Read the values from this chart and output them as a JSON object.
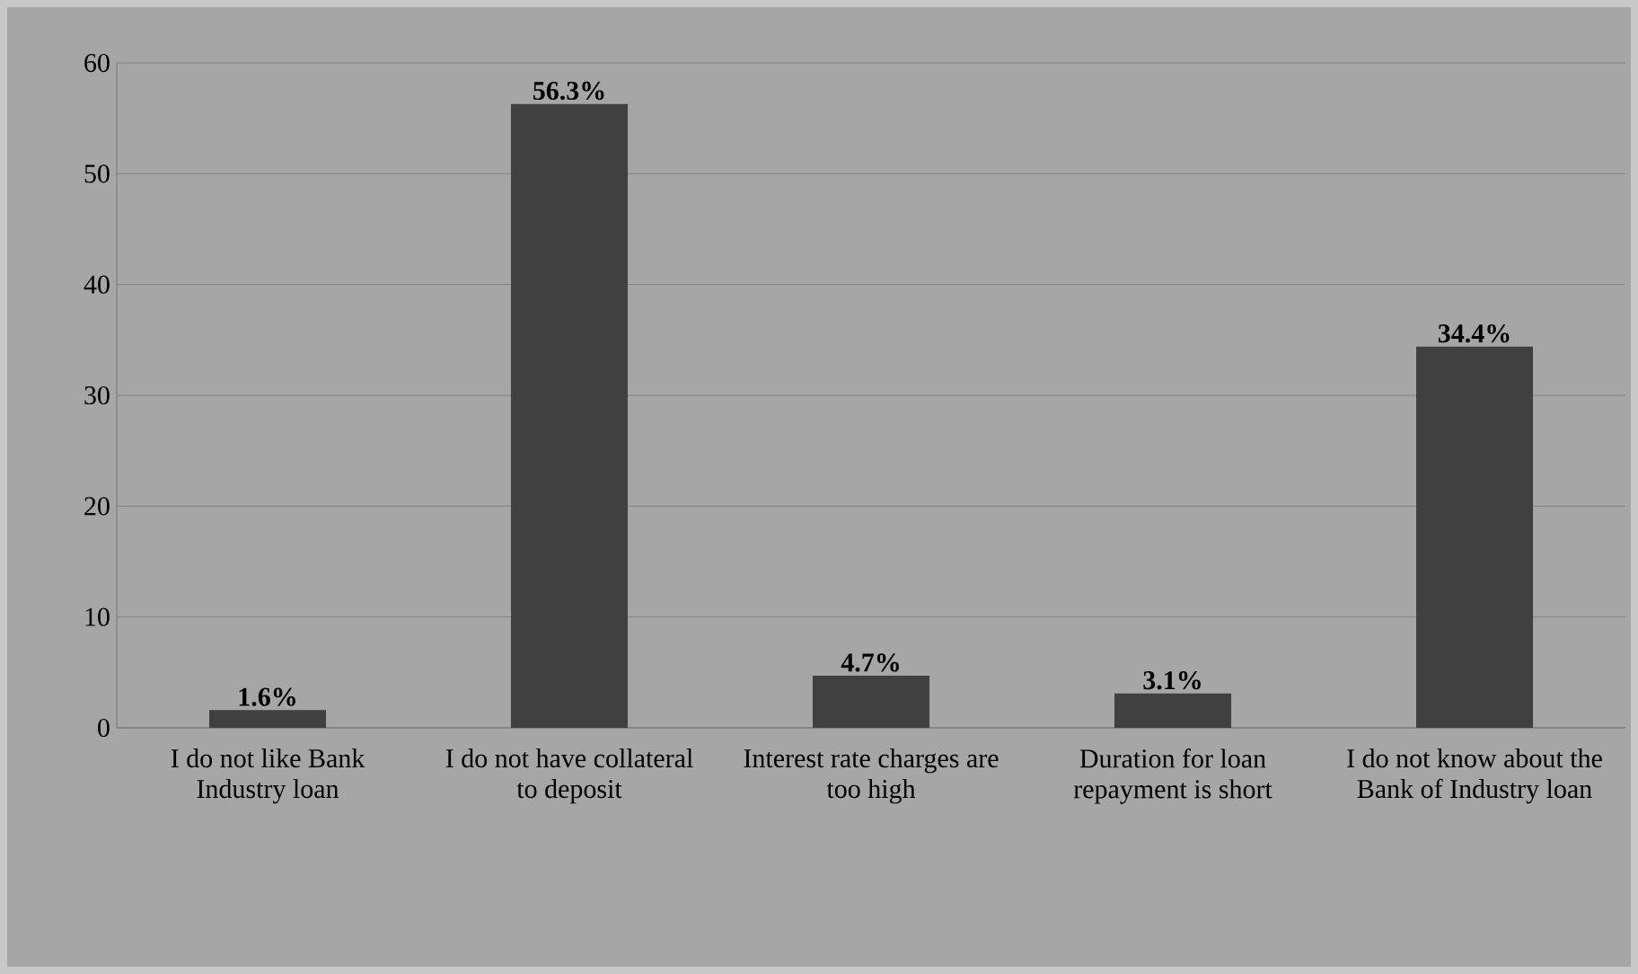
{
  "chart_data": {
    "type": "bar",
    "categories": [
      "I do not like Bank Industry loan",
      "I do not have collateral to deposit",
      "Interest rate charges are too high",
      "Duration for loan repayment is short",
      "I do not know about the Bank of Industry loan"
    ],
    "values": [
      1.6,
      56.3,
      4.7,
      3.1,
      34.4
    ],
    "value_labels": [
      "1.6%",
      "56.3%",
      "4.7%",
      "3.1%",
      "34.4%"
    ],
    "color": "#404040",
    "ylim": [
      0,
      60
    ],
    "yticks": [
      0,
      10,
      20,
      30,
      40,
      50,
      60
    ],
    "grid": "y"
  }
}
